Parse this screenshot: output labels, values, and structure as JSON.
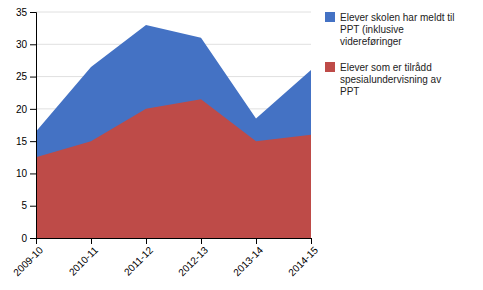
{
  "chart_data": {
    "type": "area",
    "categories": [
      "2009-10",
      "2010-11",
      "2011-12",
      "2012-13",
      "2013-14",
      "2014-15"
    ],
    "series": [
      {
        "name": "Elever skolen har meldt til\nPPT (inklusive\nvidereføringer",
        "color": "#4472C4",
        "values": [
          16.5,
          26.5,
          33,
          31,
          18.5,
          26
        ]
      },
      {
        "name": "Elever som er tilrådd\nspesialundervisning av\nPPT",
        "color": "#BE4B48",
        "values": [
          12.5,
          15,
          20,
          21.5,
          15,
          16
        ]
      }
    ],
    "ylim": [
      0,
      35
    ],
    "yticks": [
      0,
      5,
      10,
      15,
      20,
      25,
      30,
      35
    ],
    "grid": true,
    "legend": "right"
  }
}
